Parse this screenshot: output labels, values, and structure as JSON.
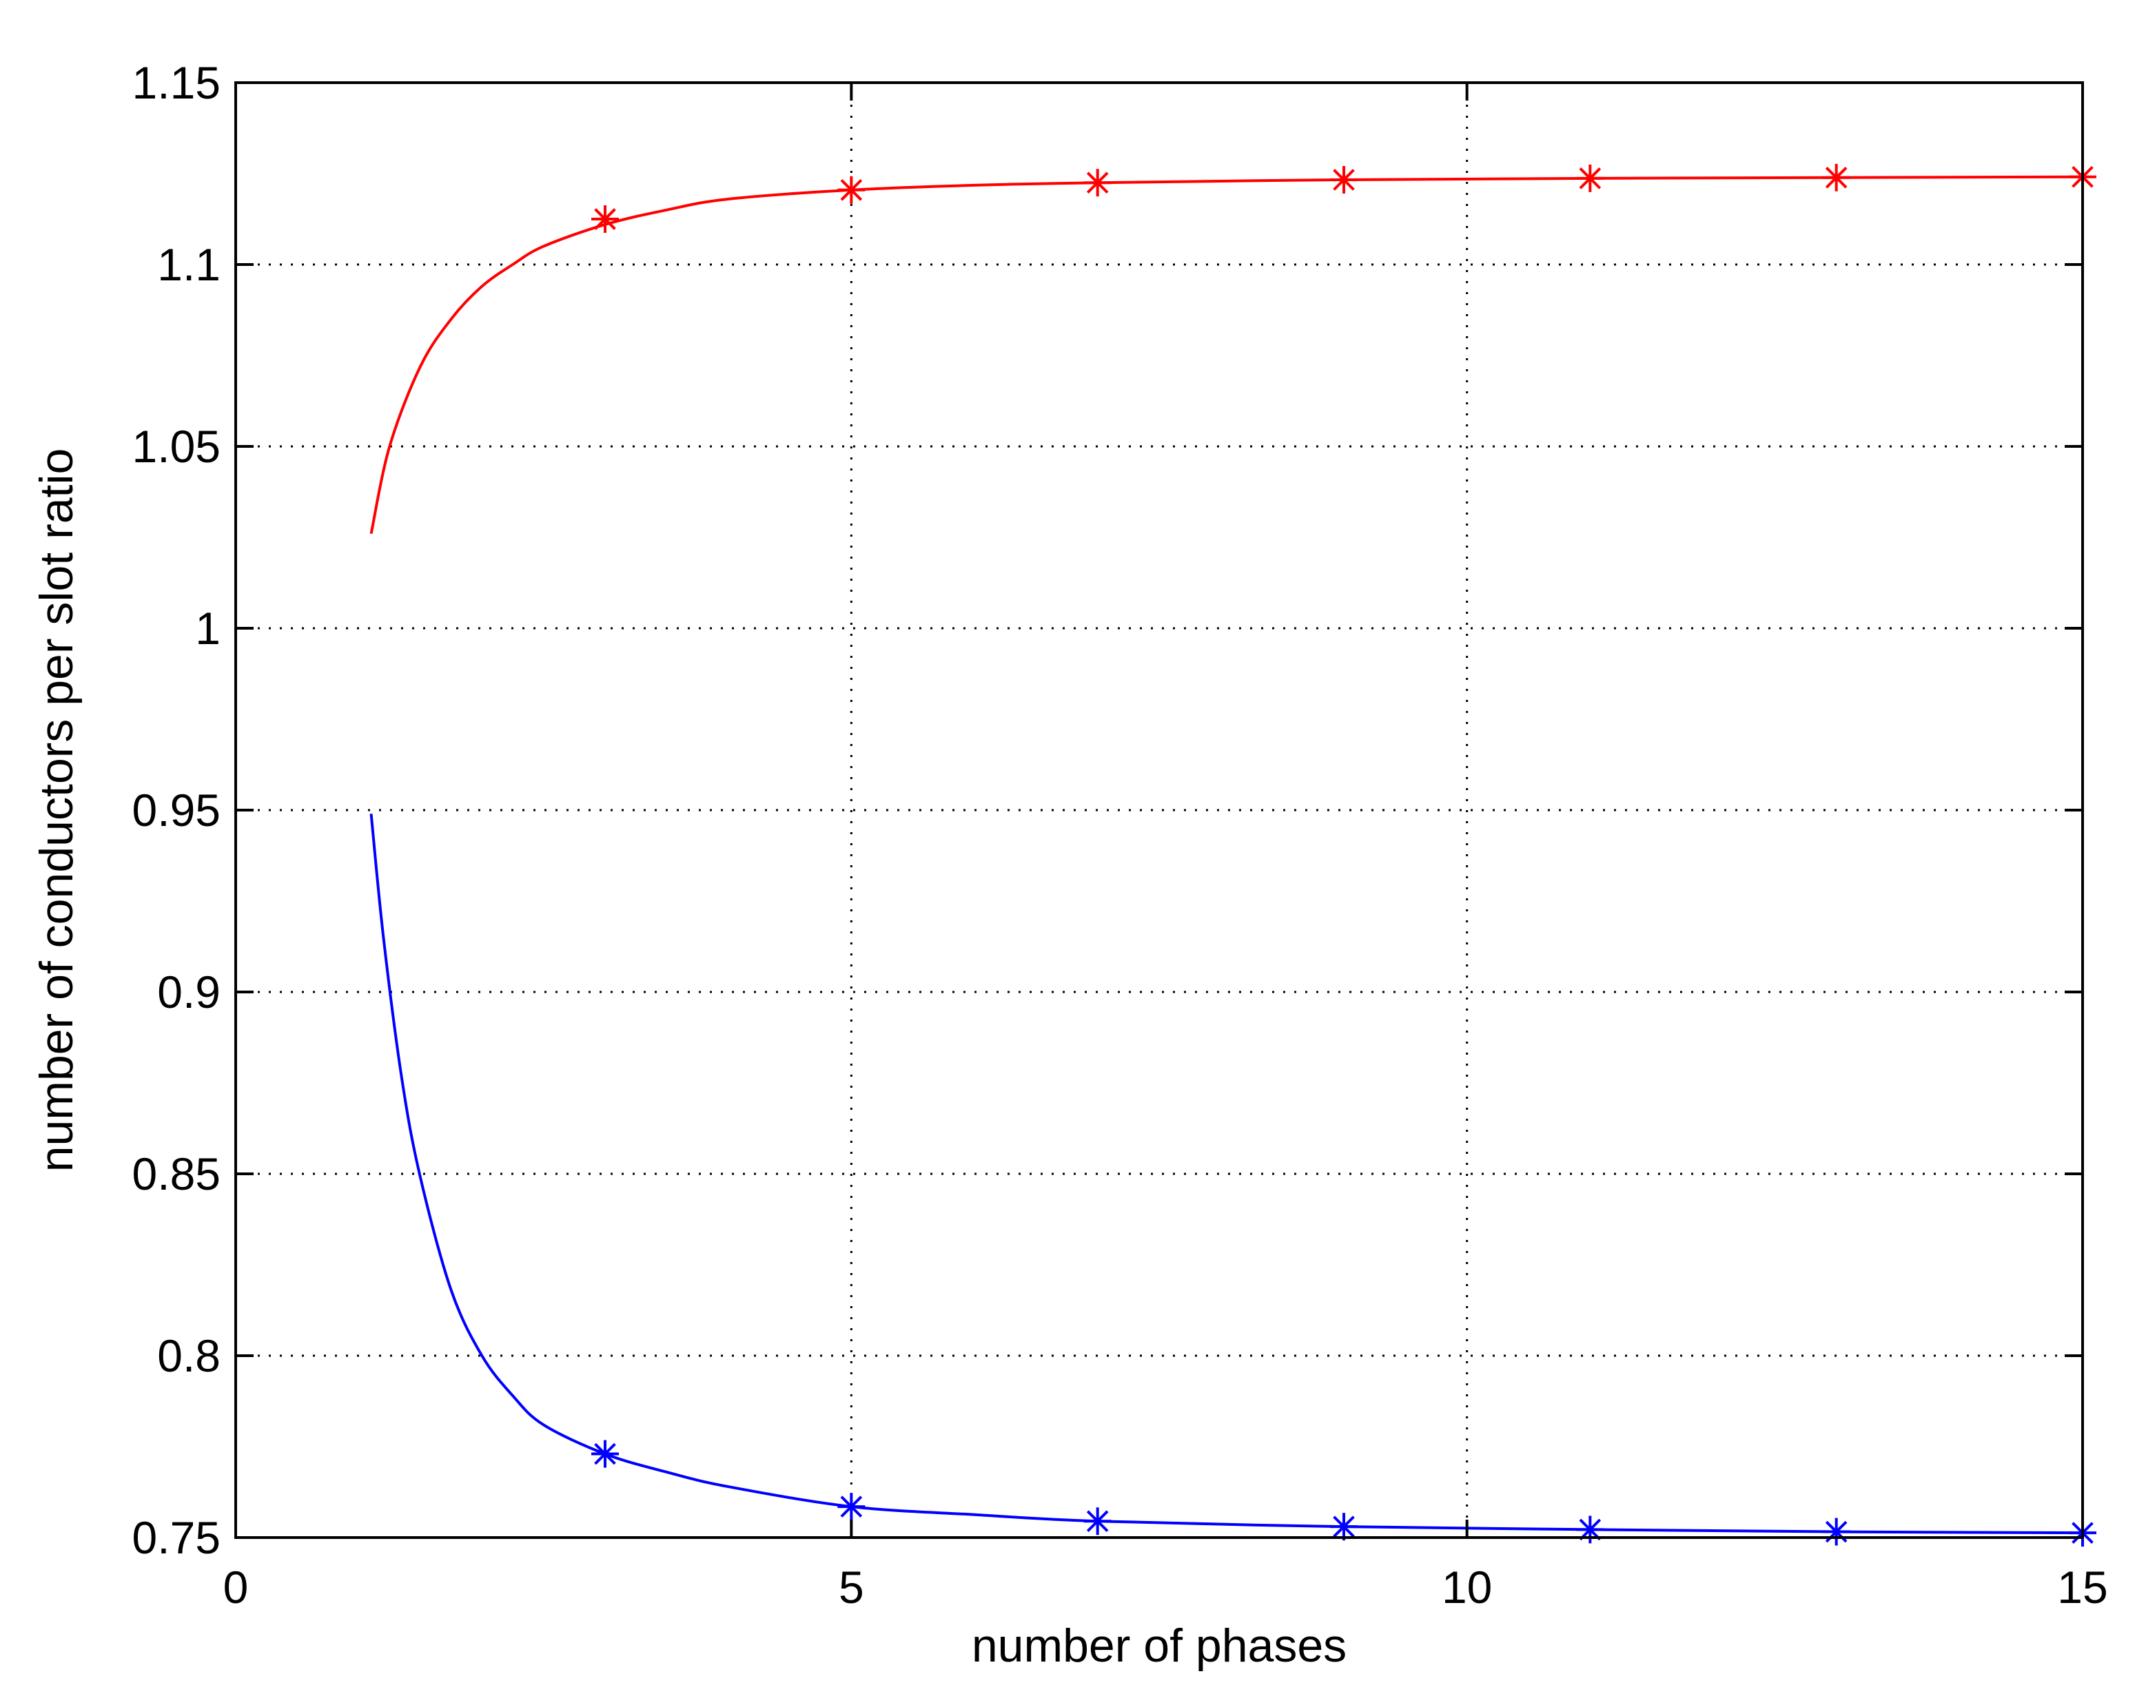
{
  "chart_data": {
    "type": "line",
    "title": "",
    "xlabel": "number of phases",
    "ylabel": "number of conductors per slot ratio",
    "xlim": [
      0,
      15
    ],
    "ylim": [
      0.75,
      1.15
    ],
    "xticks": [
      0,
      5,
      10,
      15
    ],
    "xtick_labels": [
      "0",
      "5",
      "10",
      "15"
    ],
    "yticks": [
      0.75,
      0.8,
      0.85,
      0.9,
      0.95,
      1.0,
      1.05,
      1.1,
      1.15
    ],
    "ytick_labels": [
      "0.75",
      "0.8",
      "0.85",
      "0.9",
      "0.95",
      "1",
      "1.05",
      "1.1",
      "1.15"
    ],
    "grid": true,
    "legend": "none",
    "series": [
      {
        "color": "#ff0000",
        "marker": "asterisk",
        "curve": {
          "x": [
            1.1,
            1.25,
            1.5,
            1.75,
            2.0,
            2.25,
            2.5,
            3.0,
            3.5,
            4.0,
            5.0,
            6.0,
            7.0,
            9.0,
            11.0,
            13.0,
            15.0
          ],
          "y": [
            1.026,
            1.05,
            1.072,
            1.085,
            1.094,
            1.1,
            1.105,
            1.111,
            1.115,
            1.118,
            1.1205,
            1.1218,
            1.1225,
            1.1233,
            1.1237,
            1.1239,
            1.1241
          ]
        },
        "markers": {
          "x": [
            3,
            5,
            7,
            9,
            11,
            13,
            15
          ],
          "y": [
            1.1125,
            1.1205,
            1.1225,
            1.1233,
            1.1237,
            1.1239,
            1.1241
          ]
        }
      },
      {
        "color": "#0000ff",
        "marker": "asterisk",
        "curve": {
          "x": [
            1.1,
            1.2,
            1.35,
            1.5,
            1.75,
            2.0,
            2.25,
            2.5,
            3.0,
            3.5,
            4.0,
            5.0,
            6.0,
            7.0,
            9.0,
            11.0,
            13.0,
            15.0
          ],
          "y": [
            0.949,
            0.915,
            0.876,
            0.849,
            0.818,
            0.8,
            0.789,
            0.781,
            0.773,
            0.768,
            0.764,
            0.7585,
            0.7563,
            0.7545,
            0.753,
            0.7522,
            0.7516,
            0.7513
          ]
        },
        "markers": {
          "x": [
            3,
            5,
            7,
            9,
            11,
            13,
            15
          ],
          "y": [
            0.773,
            0.7585,
            0.7545,
            0.753,
            0.7522,
            0.7516,
            0.7513
          ]
        }
      }
    ]
  }
}
